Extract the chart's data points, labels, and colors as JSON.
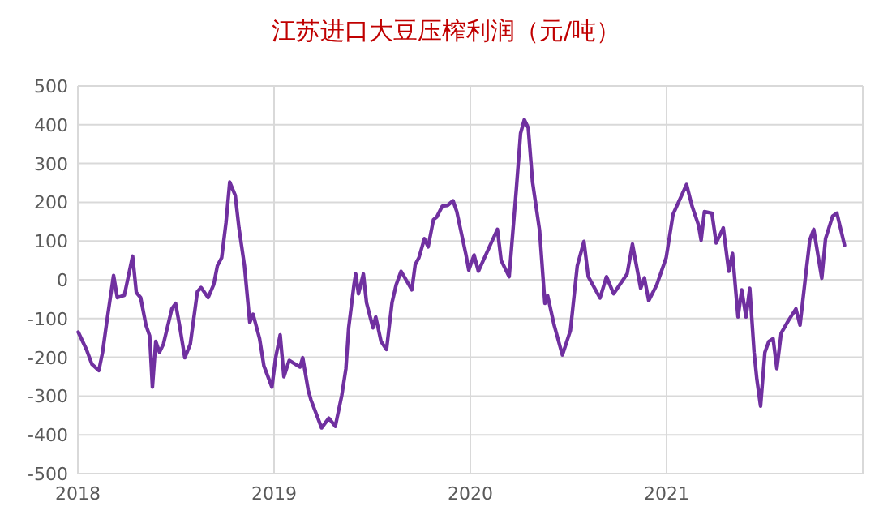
{
  "chart_data": {
    "type": "line",
    "title": "江苏进口大豆压榨利润（元/吨）",
    "x": [
      2018.002,
      2018.044,
      2018.072,
      2018.107,
      2018.126,
      2018.149,
      2018.182,
      2018.201,
      2018.237,
      2018.279,
      2018.298,
      2018.32,
      2018.347,
      2018.366,
      2018.38,
      2018.397,
      2018.416,
      2018.436,
      2018.479,
      2018.498,
      2018.518,
      2018.545,
      2018.573,
      2018.609,
      2018.628,
      2018.664,
      2018.692,
      2018.711,
      2018.733,
      2018.755,
      2018.774,
      2018.802,
      2018.821,
      2018.849,
      2018.876,
      2018.893,
      2018.926,
      2018.948,
      2018.989,
      2019.008,
      2019.031,
      2019.05,
      2019.077,
      2019.132,
      2019.146,
      2019.174,
      2019.188,
      2019.242,
      2019.279,
      2019.312,
      2019.345,
      2019.366,
      2019.38,
      2019.407,
      2019.416,
      2019.43,
      2019.455,
      2019.471,
      2019.504,
      2019.518,
      2019.545,
      2019.573,
      2019.601,
      2019.622,
      2019.647,
      2019.702,
      2019.719,
      2019.738,
      2019.766,
      2019.785,
      2019.812,
      2019.829,
      2019.857,
      2019.884,
      2019.912,
      2019.931,
      2019.978,
      2019.992,
      2020.019,
      2020.041,
      2020.11,
      2020.138,
      2020.157,
      2020.198,
      2020.234,
      2020.256,
      2020.275,
      2020.295,
      2020.317,
      2020.353,
      2020.38,
      2020.394,
      2020.427,
      2020.469,
      2020.51,
      2020.545,
      2020.579,
      2020.601,
      2020.661,
      2020.694,
      2020.73,
      2020.799,
      2020.826,
      2020.868,
      2020.887,
      2020.909,
      2020.95,
      2020.998,
      2021.033,
      2021.102,
      2021.13,
      2021.163,
      2021.176,
      2021.193,
      2021.231,
      2021.253,
      2021.289,
      2021.317,
      2021.336,
      2021.364,
      2021.383,
      2021.405,
      2021.424,
      2021.446,
      2021.46,
      2021.479,
      2021.501,
      2021.521,
      2021.543,
      2021.562,
      2021.584,
      2021.62,
      2021.659,
      2021.68,
      2021.708,
      2021.73,
      2021.75,
      2021.791,
      2021.81,
      2021.846,
      2021.868,
      2021.907
    ],
    "series": [
      {
        "color": "#7030a0",
        "values": [
          -135,
          -180,
          -218,
          -234,
          -187,
          -103,
          11,
          -46,
          -40,
          61,
          -33,
          -46,
          -117,
          -145,
          -277,
          -159,
          -187,
          -166,
          -75,
          -61,
          -117,
          -201,
          -166,
          -31,
          -20,
          -46,
          -13,
          36,
          57,
          148,
          252,
          218,
          134,
          36,
          -110,
          -89,
          -152,
          -222,
          -277,
          -201,
          -142,
          -250,
          -208,
          -225,
          -201,
          -285,
          -310,
          -382,
          -357,
          -378,
          -298,
          -229,
          -124,
          -13,
          15,
          -36,
          15,
          -59,
          -124,
          -96,
          -159,
          -180,
          -59,
          -13,
          22,
          -26,
          39,
          57,
          106,
          85,
          155,
          162,
          190,
          192,
          204,
          176,
          64,
          25,
          64,
          22,
          99,
          130,
          50,
          8,
          231,
          378,
          413,
          392,
          252,
          127,
          -61,
          -41,
          -117,
          -194,
          -131,
          36,
          99,
          8,
          -47,
          8,
          -36,
          15,
          92,
          -22,
          5,
          -54,
          -13,
          57,
          169,
          246,
          190,
          141,
          102,
          176,
          172,
          95,
          134,
          22,
          68,
          -96,
          -26,
          -96,
          -22,
          -187,
          -256,
          -326,
          -187,
          -159,
          -152,
          -229,
          -138,
          -106,
          -75,
          -117,
          8,
          103,
          130,
          4,
          106,
          164,
          172,
          89
        ]
      }
    ],
    "xlim": [
      2018,
      2022
    ],
    "xticks": [
      2018,
      2019,
      2020,
      2021
    ],
    "ylim": [
      -500,
      500
    ],
    "yticks": [
      -500,
      -400,
      -300,
      -200,
      -100,
      0,
      100,
      200,
      300,
      400,
      500
    ],
    "grid": true,
    "line_style": "solid",
    "marker": "none"
  }
}
